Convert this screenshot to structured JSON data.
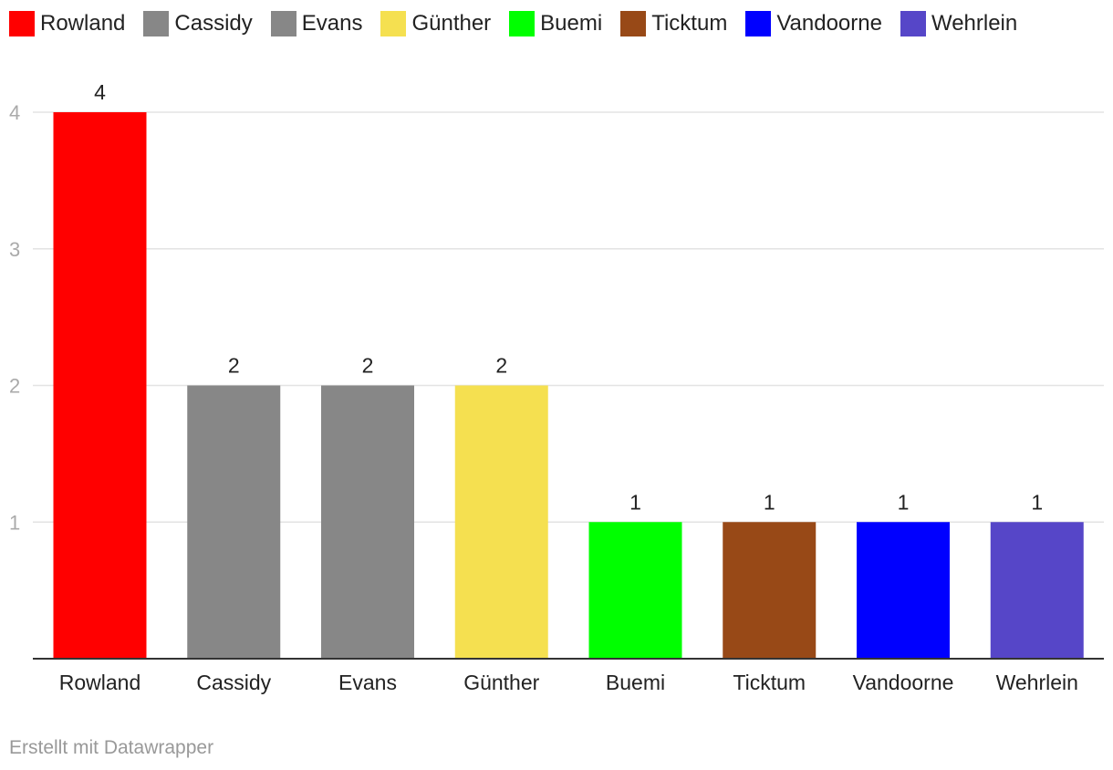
{
  "chart_data": {
    "type": "bar",
    "categories": [
      "Rowland",
      "Cassidy",
      "Evans",
      "Günther",
      "Buemi",
      "Ticktum",
      "Vandoorne",
      "Wehrlein"
    ],
    "values": [
      4,
      2,
      2,
      2,
      1,
      1,
      1,
      1
    ],
    "colors": [
      "#ff0000",
      "#878787",
      "#878787",
      "#f5e050",
      "#00ff00",
      "#984917",
      "#0000ff",
      "#5646c8"
    ],
    "legend": [
      "Rowland",
      "Cassidy",
      "Evans",
      "Günther",
      "Buemi",
      "Ticktum",
      "Vandoorne",
      "Wehrlein"
    ],
    "yticks": [
      1,
      2,
      3,
      4
    ],
    "ylim": [
      0,
      4
    ],
    "grid": true,
    "legend_position": "top-left",
    "title": "",
    "xlabel": "",
    "ylabel": ""
  },
  "footer": {
    "credit": "Erstellt mit Datawrapper"
  }
}
